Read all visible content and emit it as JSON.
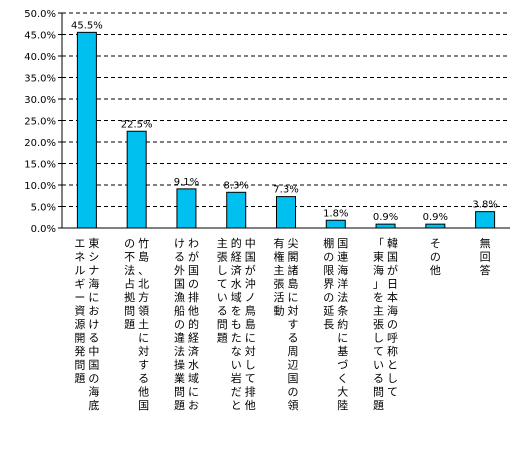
{
  "chart_data": {
    "type": "bar",
    "title": "",
    "xlabel": "",
    "ylabel": "",
    "ylim": [
      0,
      50
    ],
    "y_ticks": [
      "0.0%",
      "5.0%",
      "10.0%",
      "15.0%",
      "20.0%",
      "25.0%",
      "30.0%",
      "35.0%",
      "40.0%",
      "45.0%",
      "50.0%"
    ],
    "grid": "horizontal dashed",
    "bar_color": "#00c0f0",
    "categories": [
      [
        "東シナ海における中国の海底",
        "エネルギー資源開発問題"
      ],
      [
        "竹島、北方領土に対する他国",
        "の不法占拠問題"
      ],
      [
        "わが国の排他的経済水域にお",
        "ける外国漁船の違法操業問題"
      ],
      [
        "中国が沖ノ鳥島に対して排他",
        "的経済水域をもたない岩だと",
        "主張している問題"
      ],
      [
        "尖閣諸島に対する周辺国の領",
        "有権主張活動"
      ],
      [
        "国連海洋法条約に基づく大陸",
        "棚の限界の延長"
      ],
      [
        "韓国が日本海の呼称として",
        "「東海」を主張している問題"
      ],
      [
        "その他"
      ],
      [
        "無回答"
      ]
    ],
    "values": [
      45.5,
      22.5,
      9.1,
      8.3,
      7.3,
      1.8,
      0.9,
      0.9,
      3.8
    ],
    "data_labels": [
      "45.5%",
      "22.5%",
      "9.1%",
      "8.3%",
      "7.3%",
      "1.8%",
      "0.9%",
      "0.9%",
      "3.8%"
    ]
  }
}
